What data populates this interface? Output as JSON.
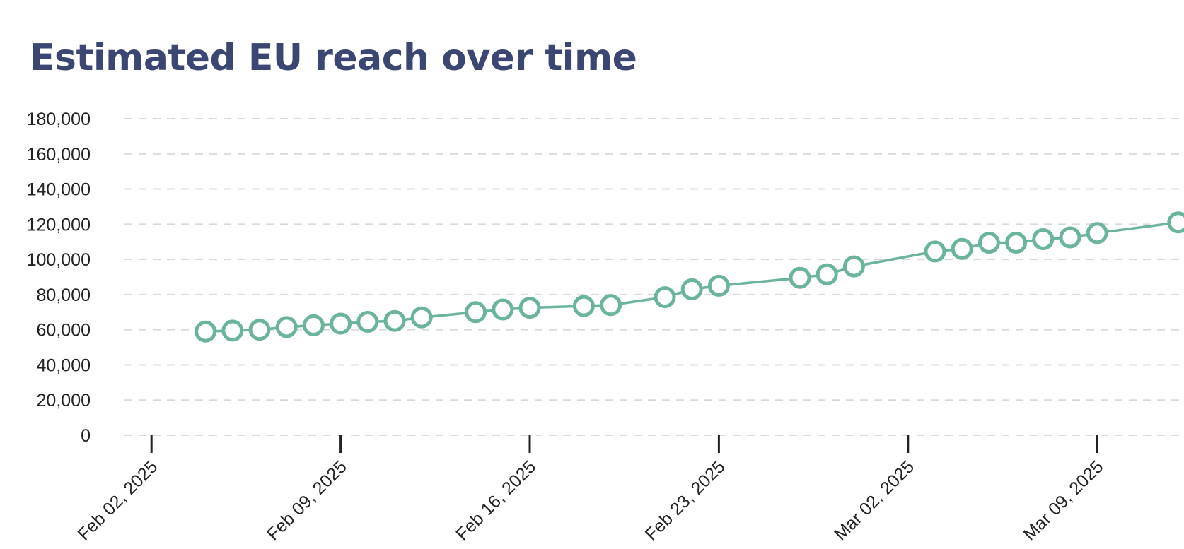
{
  "chart_data": {
    "type": "line",
    "title": "Estimated EU reach over time",
    "xlabel": "",
    "ylabel": "",
    "ylim": [
      0,
      180000
    ],
    "y_ticks": [
      "0",
      "20,000",
      "40,000",
      "60,000",
      "80,000",
      "100,000",
      "120,000",
      "140,000",
      "160,000",
      "180,000"
    ],
    "x_ticks": [
      {
        "date": "2025-02-02",
        "label": "Feb 02, 2025"
      },
      {
        "date": "2025-02-09",
        "label": "Feb 09, 2025"
      },
      {
        "date": "2025-02-16",
        "label": "Feb 16, 2025"
      },
      {
        "date": "2025-02-23",
        "label": "Feb 23, 2025"
      },
      {
        "date": "2025-03-02",
        "label": "Mar 02, 2025"
      },
      {
        "date": "2025-03-09",
        "label": "Mar 09, 2025"
      }
    ],
    "xlim": [
      "2025-02-01",
      "2025-03-13"
    ],
    "grid": true,
    "legend": "none",
    "line_color": "#6ab39c",
    "grid_color": "#d9d9d9",
    "series": [
      {
        "points": [
          {
            "x": "2025-02-04",
            "y": 59000
          },
          {
            "x": "2025-02-05",
            "y": 59500
          },
          {
            "x": "2025-02-06",
            "y": 60000
          },
          {
            "x": "2025-02-07",
            "y": 61500
          },
          {
            "x": "2025-02-08",
            "y": 62500
          },
          {
            "x": "2025-02-09",
            "y": 63500
          },
          {
            "x": "2025-02-10",
            "y": 64500
          },
          {
            "x": "2025-02-11",
            "y": 65000
          },
          {
            "x": "2025-02-12",
            "y": 67000
          },
          {
            "x": "2025-02-14",
            "y": 70000
          },
          {
            "x": "2025-02-15",
            "y": 71500
          },
          {
            "x": "2025-02-16",
            "y": 72500
          },
          {
            "x": "2025-02-18",
            "y": 73500
          },
          {
            "x": "2025-02-19",
            "y": 74000
          },
          {
            "x": "2025-02-21",
            "y": 78500
          },
          {
            "x": "2025-02-22",
            "y": 83000
          },
          {
            "x": "2025-02-23",
            "y": 85000
          },
          {
            "x": "2025-02-26",
            "y": 89500
          },
          {
            "x": "2025-02-27",
            "y": 91500
          },
          {
            "x": "2025-02-28",
            "y": 96000
          },
          {
            "x": "2025-03-03",
            "y": 104500
          },
          {
            "x": "2025-03-04",
            "y": 106000
          },
          {
            "x": "2025-03-05",
            "y": 109500
          },
          {
            "x": "2025-03-06",
            "y": 109500
          },
          {
            "x": "2025-03-07",
            "y": 111500
          },
          {
            "x": "2025-03-08",
            "y": 112500
          },
          {
            "x": "2025-03-09",
            "y": 115000
          },
          {
            "x": "2025-03-12",
            "y": 121000
          }
        ]
      }
    ]
  }
}
